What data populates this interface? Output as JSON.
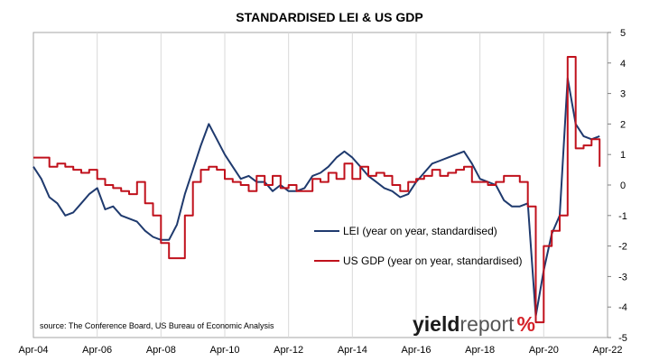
{
  "chart_data": {
    "type": "line",
    "title": "STANDARDISED LEI & US GDP",
    "source": "source: The Conference Board, US Bureau of Economic Analysis",
    "brand": {
      "main": "yield",
      "light": "report",
      "symbol": "%",
      "symbol_color": "#d5232a"
    },
    "x_ticks": [
      "Apr-04",
      "Apr-06",
      "Apr-08",
      "Apr-10",
      "Apr-12",
      "Apr-14",
      "Apr-16",
      "Apr-18",
      "Apr-20",
      "Apr-22"
    ],
    "y_ticks": [
      "5",
      "4",
      "3",
      "2",
      "1",
      "0",
      "-1",
      "-2",
      "-3",
      "-4",
      "-5"
    ],
    "xlim": [
      2004.25,
      2022.25
    ],
    "ylim": [
      -5,
      5
    ],
    "grid": "vertical",
    "legend": [
      {
        "label": "LEI (year on year, standardised)",
        "color": "#1f3a6e"
      },
      {
        "label": "US GDP (year on year, standardised)",
        "color": "#c0111c"
      }
    ],
    "series": [
      {
        "name": "LEI (year on year, standardised)",
        "color": "#1f3a6e",
        "x": [
          2004.25,
          2004.5,
          2004.75,
          2005.0,
          2005.25,
          2005.5,
          2005.75,
          2006.0,
          2006.25,
          2006.5,
          2006.75,
          2007.0,
          2007.25,
          2007.5,
          2007.75,
          2008.0,
          2008.25,
          2008.5,
          2008.75,
          2009.0,
          2009.25,
          2009.5,
          2009.75,
          2010.0,
          2010.25,
          2010.5,
          2010.75,
          2011.0,
          2011.25,
          2011.5,
          2011.75,
          2012.0,
          2012.25,
          2012.5,
          2012.75,
          2013.0,
          2013.25,
          2013.5,
          2013.75,
          2014.0,
          2014.25,
          2014.5,
          2014.75,
          2015.0,
          2015.25,
          2015.5,
          2015.75,
          2016.0,
          2016.25,
          2016.5,
          2016.75,
          2017.0,
          2017.25,
          2017.5,
          2017.75,
          2018.0,
          2018.25,
          2018.5,
          2018.75,
          2019.0,
          2019.25,
          2019.5,
          2019.75,
          2020.0,
          2020.25,
          2020.5,
          2020.75,
          2021.0,
          2021.25,
          2021.5,
          2021.75,
          2022.0
        ],
        "values": [
          0.6,
          0.2,
          -0.4,
          -0.6,
          -1.0,
          -0.9,
          -0.6,
          -0.3,
          -0.1,
          -0.8,
          -0.7,
          -1.0,
          -1.1,
          -1.2,
          -1.5,
          -1.7,
          -1.8,
          -1.8,
          -1.3,
          -0.3,
          0.5,
          1.3,
          2.0,
          1.5,
          1.0,
          0.6,
          0.2,
          0.3,
          0.1,
          0.1,
          -0.2,
          0.0,
          -0.2,
          -0.2,
          -0.1,
          0.3,
          0.4,
          0.6,
          0.9,
          1.1,
          0.9,
          0.6,
          0.3,
          0.1,
          -0.1,
          -0.2,
          -0.4,
          -0.3,
          0.1,
          0.4,
          0.7,
          0.8,
          0.9,
          1.0,
          1.1,
          0.7,
          0.2,
          0.1,
          0.0,
          -0.5,
          -0.7,
          -0.7,
          -0.6,
          -4.3,
          -2.8,
          -1.6,
          -1.0,
          3.5,
          2.0,
          1.6,
          1.5,
          1.6
        ]
      },
      {
        "name": "US GDP (year on year, standardised)",
        "color": "#c0111c",
        "x": [
          2004.25,
          2004.5,
          2004.75,
          2005.0,
          2005.25,
          2005.5,
          2005.75,
          2006.0,
          2006.25,
          2006.5,
          2006.75,
          2007.0,
          2007.25,
          2007.5,
          2007.75,
          2008.0,
          2008.25,
          2008.5,
          2008.75,
          2009.0,
          2009.25,
          2009.5,
          2009.75,
          2010.0,
          2010.25,
          2010.5,
          2010.75,
          2011.0,
          2011.25,
          2011.5,
          2011.75,
          2012.0,
          2012.25,
          2012.5,
          2012.75,
          2013.0,
          2013.25,
          2013.5,
          2013.75,
          2014.0,
          2014.25,
          2014.5,
          2014.75,
          2015.0,
          2015.25,
          2015.5,
          2015.75,
          2016.0,
          2016.25,
          2016.5,
          2016.75,
          2017.0,
          2017.25,
          2017.5,
          2017.75,
          2018.0,
          2018.25,
          2018.5,
          2018.75,
          2019.0,
          2019.25,
          2019.5,
          2019.75,
          2020.0,
          2020.25,
          2020.5,
          2020.75,
          2021.0,
          2021.25,
          2021.5,
          2021.75,
          2022.0
        ],
        "values": [
          0.9,
          0.9,
          0.6,
          0.7,
          0.6,
          0.5,
          0.4,
          0.5,
          0.2,
          0.0,
          -0.1,
          -0.2,
          -0.3,
          0.1,
          -0.6,
          -1.0,
          -1.9,
          -2.4,
          -2.4,
          -1.0,
          0.1,
          0.5,
          0.6,
          0.5,
          0.2,
          0.1,
          0.0,
          -0.2,
          0.3,
          0.0,
          0.3,
          -0.1,
          0.0,
          -0.2,
          -0.2,
          0.2,
          0.1,
          0.4,
          0.2,
          0.7,
          0.2,
          0.6,
          0.3,
          0.4,
          0.3,
          0.0,
          -0.2,
          0.1,
          0.2,
          0.3,
          0.5,
          0.3,
          0.4,
          0.5,
          0.6,
          0.1,
          0.1,
          0.0,
          0.1,
          0.3,
          0.3,
          0.1,
          -0.7,
          -4.5,
          -2.0,
          -1.5,
          -1.0,
          4.2,
          1.2,
          1.3,
          1.5,
          0.6
        ]
      }
    ]
  }
}
